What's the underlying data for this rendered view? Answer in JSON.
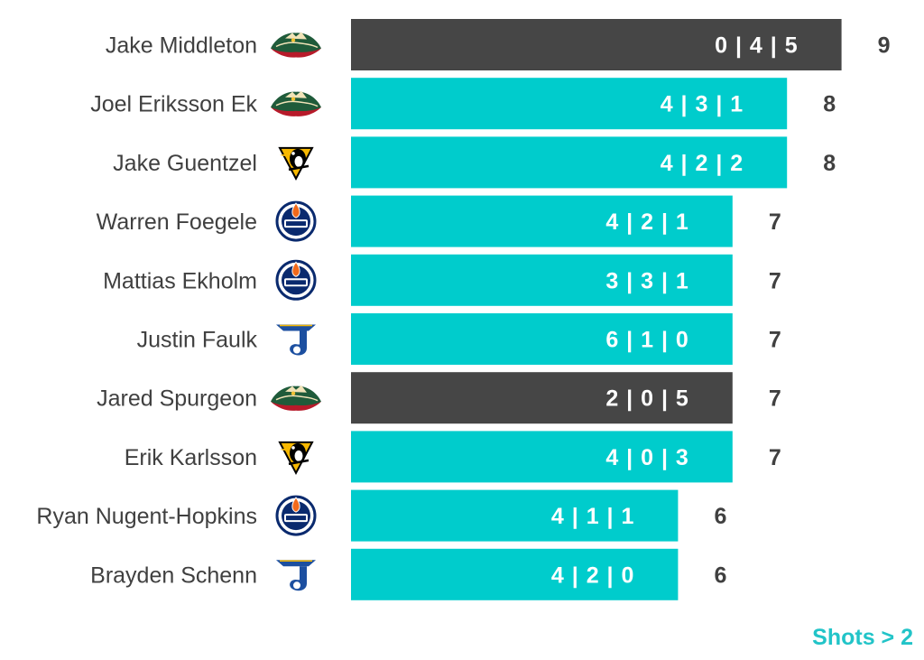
{
  "chart_data": {
    "type": "bar",
    "orientation": "horizontal",
    "categories": [
      "Jake Middleton",
      "Joel Eriksson Ek",
      "Jake Guentzel",
      "Warren Foegele",
      "Mattias Ekholm",
      "Justin Faulk",
      "Jared Spurgeon",
      "Erik Karlsson",
      "Ryan Nugent-Hopkins",
      "Brayden Schenn"
    ],
    "values": [
      9,
      8,
      8,
      7,
      7,
      7,
      7,
      7,
      6,
      6
    ],
    "bar_labels": [
      "0 | 4 | 5",
      "4 | 3 | 1",
      "4 | 2 | 2",
      "4 | 2 | 1",
      "3 | 3 | 1",
      "6 | 1 | 0",
      "2 | 0 | 5",
      "4 | 0 | 3",
      "4 | 1 | 1",
      "4 | 2 | 0"
    ],
    "teams": [
      "wild",
      "wild",
      "penguins",
      "oilers",
      "oilers",
      "blues",
      "wild",
      "penguins",
      "oilers",
      "blues"
    ],
    "highlighted": [
      true,
      false,
      false,
      false,
      false,
      false,
      true,
      false,
      false,
      false
    ],
    "xlim": [
      0,
      9
    ],
    "grid": false,
    "footnote": "Shots > 2"
  },
  "colors": {
    "bar": "#00cccc",
    "bar_highlight": "#464646",
    "label_text": "#404040",
    "footnote": "#22c4c8"
  },
  "icons": {
    "wild": "minnesota-wild-logo-icon",
    "penguins": "pittsburgh-penguins-logo-icon",
    "oilers": "edmonton-oilers-logo-icon",
    "blues": "st-louis-blues-logo-icon"
  }
}
